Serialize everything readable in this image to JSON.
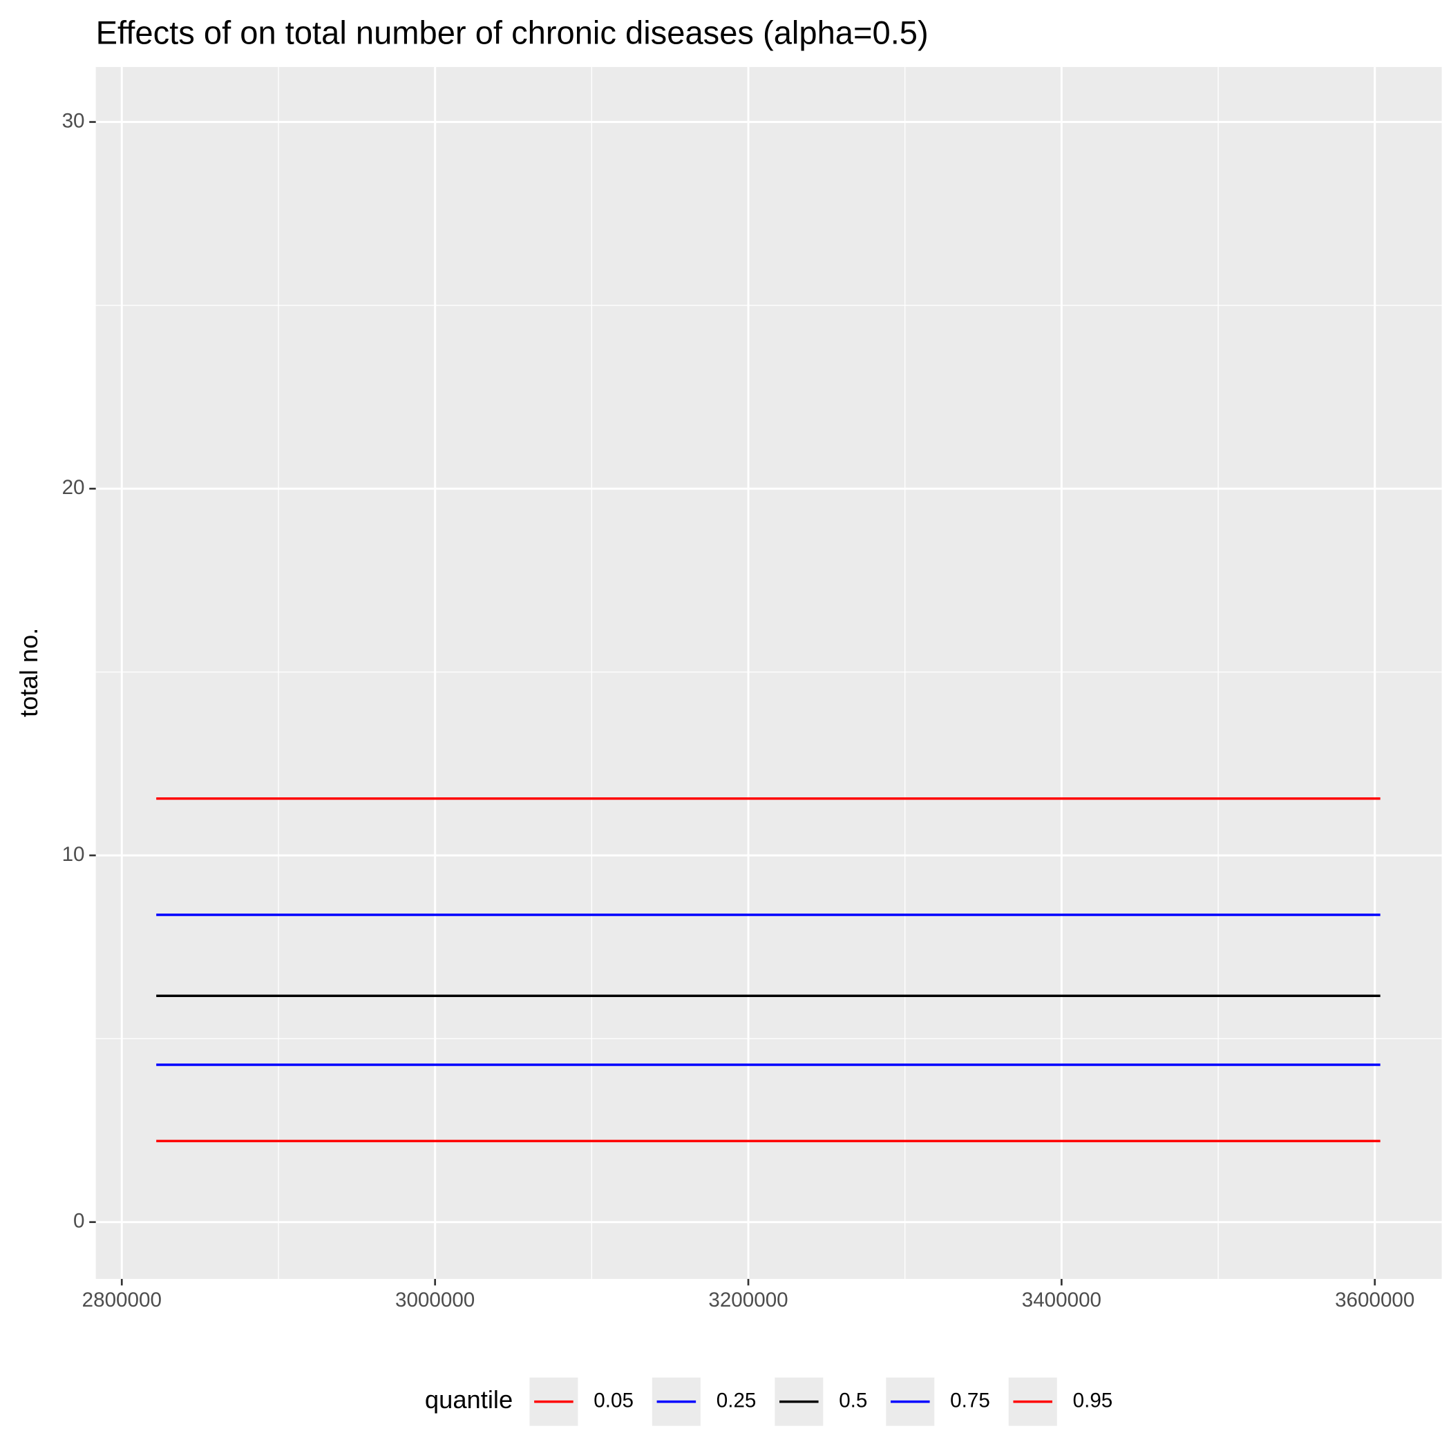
{
  "chart_data": {
    "type": "line",
    "title": "Effects of  on total number of chronic diseases (alpha=0.5)",
    "y_label": "total no.",
    "x": [
      2822000,
      3603500
    ],
    "series": [
      {
        "name": "0.05",
        "color": "#ff0000",
        "values": [
          2.21,
          2.21
        ]
      },
      {
        "name": "0.25",
        "color": "#0000ff",
        "values": [
          4.29,
          4.29
        ]
      },
      {
        "name": "0.5",
        "color": "#000000",
        "values": [
          6.17,
          6.17
        ]
      },
      {
        "name": "0.75",
        "color": "#0000ff",
        "values": [
          8.38,
          8.38
        ]
      },
      {
        "name": "0.95",
        "color": "#ff0000",
        "values": [
          11.55,
          11.55
        ]
      }
    ],
    "legend_title": "quantile",
    "legend_position": "bottom",
    "xlim": [
      2783400,
      3642700
    ],
    "xticks": [
      2800000,
      3000000,
      3200000,
      3400000,
      3600000
    ],
    "ylim": [
      -1.55,
      31.5
    ],
    "yticks": [
      0,
      10,
      20,
      30
    ],
    "grid": true
  }
}
